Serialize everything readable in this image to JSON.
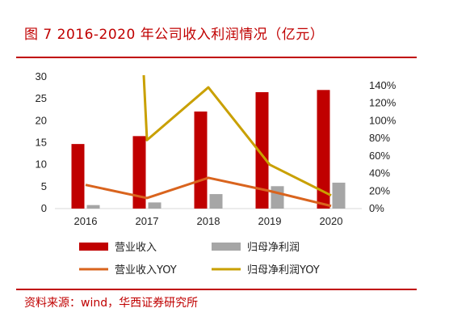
{
  "title": "图 7 2016-2020 年公司收入利润情况（亿元）",
  "source": "资料来源：wind，华西证券研究所",
  "colors": {
    "accent": "#c00000",
    "revenue": "#c00000",
    "profit": "#a6a6a6",
    "revenue_yoy": "#d9641e",
    "profit_yoy": "#c9a000"
  },
  "chart_data": {
    "type": "bar",
    "categories": [
      "2016",
      "2017",
      "2018",
      "2019",
      "2020"
    ],
    "series": [
      {
        "name": "营业收入",
        "kind": "bar",
        "axis": "left",
        "values": [
          14.7,
          16.5,
          22.1,
          26.5,
          27.0
        ]
      },
      {
        "name": "归母净利润",
        "kind": "bar",
        "axis": "left",
        "values": [
          0.8,
          1.4,
          3.3,
          5.1,
          5.9
        ]
      },
      {
        "name": "营业收入YOY",
        "kind": "line",
        "axis": "right",
        "values": [
          0.27,
          0.12,
          0.35,
          0.2,
          0.03
        ]
      },
      {
        "name": "归母净利润YOY",
        "kind": "line",
        "axis": "right",
        "values": [
          null,
          0.78,
          1.38,
          0.5,
          0.15
        ],
        "note_2017_start": "off-chart above 150%"
      }
    ],
    "ylim_left": [
      0,
      30
    ],
    "yticks_left": [
      "0",
      "5",
      "10",
      "15",
      "20",
      "25",
      "30"
    ],
    "ylim_right": [
      0,
      1.5
    ],
    "yticks_right": [
      "0%",
      "20%",
      "40%",
      "60%",
      "80%",
      "100%",
      "120%",
      "140%"
    ],
    "legend_position": "bottom"
  }
}
